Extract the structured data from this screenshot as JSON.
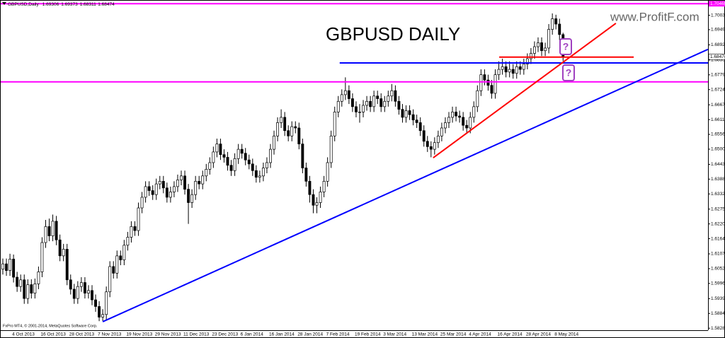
{
  "chart_data": {
    "type": "candlestick",
    "symbol_label": "GBPUSD,Daily",
    "title": "GBPUSD  DAILY",
    "watermark": "www.ProfitF.com",
    "copyright": "FxPro MT4, © 2001-2014, MetaQuotes Software Corp.",
    "question_marks": [
      "?",
      "?"
    ],
    "bull_color": "#ffffff",
    "bear_color": "#000000",
    "ylim": [
      1.5813,
      1.7055
    ],
    "yticks": [
      1.58285,
      {
        "value": 1.5884,
        "label": "1.58840"
      },
      1.59395,
      1.59965,
      {
        "value": 1.6052,
        "label": "1.60520"
      },
      1.61075,
      1.61645,
      {
        "value": 1.622,
        "label": "1.62200"
      },
      1.62755,
      1.63325,
      {
        "value": 1.6388,
        "label": "1.63880"
      },
      1.64435,
      1.65005,
      {
        "value": 1.6556,
        "label": "1.65560"
      },
      1.66115,
      {
        "value": 1.6667,
        "label": "1.66670"
      },
      {
        "value": 1.6724,
        "label": "1.67240"
      },
      1.67795,
      {
        "value": 1.6835,
        "label": "1.68350"
      },
      {
        "value": 1.6892,
        "label": "1.68920"
      },
      {
        "value": 1.6949,
        "label": "1.69490"
      },
      {
        "value": 1.7003,
        "label": "1.70030"
      }
    ],
    "lines": [
      {
        "color": "#ff00ff",
        "x": [
          -1,
          198
        ],
        "y": [
          1.70465,
          1.70465
        ]
      },
      {
        "color": "#ff00ff",
        "x": [
          -1,
          198
        ],
        "y": [
          1.6753,
          1.6753
        ]
      },
      {
        "color": "#0000ff",
        "x": [
          94.4,
          198
        ],
        "y": [
          1.6824,
          1.6824
        ]
      },
      {
        "color": "#ff0000",
        "x": [
          139.1,
          176.8
        ],
        "y": [
          1.6846,
          1.6846
        ]
      },
      {
        "color": "#0000ff",
        "x": [
          28,
          197.6
        ],
        "y": [
          1.5853,
          1.6875
        ]
      },
      {
        "color": "#ff0000",
        "x": [
          120.6,
          171.8
        ],
        "y": [
          1.6468,
          1.6973
        ]
      }
    ],
    "categories": [
      null,
      null,
      null,
      "4 Oct 2013",
      null,
      null,
      null,
      null,
      null,
      null,
      null,
      "16 Oct 2013",
      null,
      null,
      null,
      null,
      null,
      null,
      null,
      "28 Oct 2013",
      null,
      null,
      null,
      null,
      null,
      null,
      null,
      "7 Nov 2013",
      null,
      null,
      null,
      null,
      null,
      null,
      null,
      "19 Nov 2013",
      null,
      null,
      null,
      null,
      null,
      null,
      null,
      "29 Nov 2013",
      null,
      null,
      null,
      null,
      null,
      null,
      null,
      "11 Dec 2013",
      null,
      null,
      null,
      null,
      null,
      null,
      null,
      "23 Dec 2013",
      null,
      null,
      null,
      null,
      null,
      null,
      null,
      "6 Jan 2014",
      null,
      null,
      null,
      null,
      null,
      null,
      null,
      "16 Jan 2014",
      null,
      null,
      null,
      null,
      null,
      null,
      null,
      "28 Jan 2014",
      null,
      null,
      null,
      null,
      null,
      null,
      null,
      "7 Feb 2014",
      null,
      null,
      null,
      null,
      null,
      null,
      null,
      "19 Feb 2014",
      null,
      null,
      null,
      null,
      null,
      null,
      null,
      "3 Mar 2014",
      null,
      null,
      null,
      null,
      null,
      null,
      null,
      "13 Mar 2014",
      null,
      null,
      null,
      null,
      null,
      null,
      null,
      "25 Mar 2014",
      null,
      null,
      null,
      null,
      null,
      null,
      null,
      "4 Apr 2014",
      null,
      null,
      null,
      null,
      null,
      null,
      null,
      "16 Apr 2014",
      null,
      null,
      null,
      null,
      null,
      null,
      null,
      "28 Apr 2014",
      null,
      null,
      null,
      null,
      null,
      null,
      null,
      "8 May 2014",
      null,
      null
    ],
    "ohlc": [
      [
        1.605,
        1.609,
        1.603,
        1.607
      ],
      [
        1.607,
        1.609,
        1.6025,
        1.6045
      ],
      [
        1.6045,
        1.6108,
        1.6025,
        1.6088
      ],
      [
        1.6088,
        1.6105,
        1.6,
        1.602
      ],
      [
        1.602,
        1.604,
        1.5965,
        1.5985
      ],
      [
        1.5985,
        1.603,
        1.5965,
        1.601
      ],
      [
        1.601,
        1.603,
        1.592,
        1.594
      ],
      [
        1.594,
        1.6012,
        1.592,
        1.5992
      ],
      [
        1.5992,
        1.6012,
        1.594,
        1.596
      ],
      [
        1.596,
        1.6015,
        1.594,
        1.5995
      ],
      [
        1.5995,
        1.606,
        1.5975,
        1.604
      ],
      [
        1.604,
        1.617,
        1.602,
        1.615
      ],
      [
        1.615,
        1.6235,
        1.613,
        1.621
      ],
      [
        1.621,
        1.624,
        1.6155,
        1.6175
      ],
      [
        1.6175,
        1.6255,
        1.6155,
        1.623
      ],
      [
        1.623,
        1.625,
        1.614,
        1.616
      ],
      [
        1.616,
        1.618,
        1.608,
        1.61
      ],
      [
        1.61,
        1.6145,
        1.608,
        1.6125
      ],
      [
        1.6125,
        1.6145,
        1.599,
        1.601
      ],
      [
        1.601,
        1.603,
        1.5955,
        1.5975
      ],
      [
        1.5975,
        1.5995,
        1.592,
        1.594
      ],
      [
        1.594,
        1.6005,
        1.592,
        1.5985
      ],
      [
        1.5985,
        1.602,
        1.5965,
        1.6
      ],
      [
        1.6,
        1.602,
        1.594,
        1.596
      ],
      [
        1.596,
        1.599,
        1.594,
        1.597
      ],
      [
        1.597,
        1.599,
        1.5915,
        1.5935
      ],
      [
        1.5935,
        1.5955,
        1.589,
        1.591
      ],
      [
        1.591,
        1.593,
        1.5855,
        1.587
      ],
      [
        1.587,
        1.59,
        1.5855,
        1.588
      ],
      [
        1.588,
        1.5985,
        1.586,
        1.5965
      ],
      [
        1.5965,
        1.608,
        1.5945,
        1.606
      ],
      [
        1.606,
        1.608,
        1.6015,
        1.6035
      ],
      [
        1.6035,
        1.612,
        1.6015,
        1.61
      ],
      [
        1.61,
        1.612,
        1.6065,
        1.6085
      ],
      [
        1.6085,
        1.616,
        1.6065,
        1.614
      ],
      [
        1.614,
        1.619,
        1.612,
        1.617
      ],
      [
        1.617,
        1.623,
        1.615,
        1.621
      ],
      [
        1.621,
        1.623,
        1.6175,
        1.6195
      ],
      [
        1.6195,
        1.63,
        1.6175,
        1.628
      ],
      [
        1.628,
        1.634,
        1.626,
        1.632
      ],
      [
        1.632,
        1.638,
        1.63,
        1.636
      ],
      [
        1.636,
        1.638,
        1.6325,
        1.6345
      ],
      [
        1.6345,
        1.6365,
        1.631,
        1.633
      ],
      [
        1.633,
        1.639,
        1.631,
        1.637
      ],
      [
        1.637,
        1.64,
        1.635,
        1.638
      ],
      [
        1.638,
        1.64,
        1.6335,
        1.6355
      ],
      [
        1.6355,
        1.6375,
        1.63,
        1.632
      ],
      [
        1.632,
        1.636,
        1.63,
        1.634
      ],
      [
        1.634,
        1.638,
        1.632,
        1.636
      ],
      [
        1.636,
        1.6405,
        1.634,
        1.6385
      ],
      [
        1.6385,
        1.642,
        1.6365,
        1.64
      ],
      [
        1.64,
        1.642,
        1.633,
        1.635
      ],
      [
        1.635,
        1.637,
        1.622,
        1.63
      ],
      [
        1.63,
        1.635,
        1.628,
        1.633
      ],
      [
        1.633,
        1.64,
        1.631,
        1.638
      ],
      [
        1.638,
        1.64,
        1.635,
        1.637
      ],
      [
        1.637,
        1.642,
        1.635,
        1.64
      ],
      [
        1.64,
        1.6445,
        1.638,
        1.6425
      ],
      [
        1.6425,
        1.647,
        1.6405,
        1.645
      ],
      [
        1.645,
        1.651,
        1.643,
        1.649
      ],
      [
        1.649,
        1.654,
        1.647,
        1.652
      ],
      [
        1.652,
        1.654,
        1.646,
        1.648
      ],
      [
        1.648,
        1.65,
        1.645,
        1.647
      ],
      [
        1.647,
        1.649,
        1.642,
        1.644
      ],
      [
        1.644,
        1.646,
        1.64,
        1.642
      ],
      [
        1.642,
        1.6485,
        1.64,
        1.6465
      ],
      [
        1.6465,
        1.652,
        1.6445,
        1.65
      ],
      [
        1.65,
        1.652,
        1.6465,
        1.6485
      ],
      [
        1.6485,
        1.6505,
        1.644,
        1.646
      ],
      [
        1.646,
        1.648,
        1.6425,
        1.6445
      ],
      [
        1.6445,
        1.6465,
        1.64,
        1.642
      ],
      [
        1.642,
        1.644,
        1.6375,
        1.6395
      ],
      [
        1.6395,
        1.642,
        1.6375,
        1.64
      ],
      [
        1.64,
        1.645,
        1.638,
        1.643
      ],
      [
        1.643,
        1.647,
        1.641,
        1.645
      ],
      [
        1.645,
        1.652,
        1.643,
        1.65
      ],
      [
        1.65,
        1.657,
        1.648,
        1.655
      ],
      [
        1.655,
        1.662,
        1.653,
        1.66
      ],
      [
        1.66,
        1.665,
        1.658,
        1.662
      ],
      [
        1.662,
        1.664,
        1.655,
        1.657
      ],
      [
        1.657,
        1.659,
        1.653,
        1.655
      ],
      [
        1.655,
        1.6605,
        1.653,
        1.6585
      ],
      [
        1.6585,
        1.6605,
        1.656,
        1.658
      ],
      [
        1.658,
        1.66,
        1.65,
        1.652
      ],
      [
        1.652,
        1.654,
        1.641,
        1.643
      ],
      [
        1.643,
        1.645,
        1.636,
        1.638
      ],
      [
        1.638,
        1.64,
        1.63,
        1.633
      ],
      [
        1.633,
        1.635,
        1.626,
        1.629
      ],
      [
        1.629,
        1.632,
        1.626,
        1.63
      ],
      [
        1.63,
        1.636,
        1.628,
        1.634
      ],
      [
        1.634,
        1.64,
        1.632,
        1.638
      ],
      [
        1.638,
        1.647,
        1.636,
        1.645
      ],
      [
        1.645,
        1.657,
        1.643,
        1.655
      ],
      [
        1.655,
        1.666,
        1.653,
        1.664
      ],
      [
        1.664,
        1.67,
        1.662,
        1.668
      ],
      [
        1.668,
        1.6725,
        1.666,
        1.6705
      ],
      [
        1.6705,
        1.677,
        1.6685,
        1.672
      ],
      [
        1.672,
        1.674,
        1.667,
        1.669
      ],
      [
        1.669,
        1.671,
        1.664,
        1.666
      ],
      [
        1.666,
        1.668,
        1.662,
        1.664
      ],
      [
        1.664,
        1.667,
        1.66,
        1.664
      ],
      [
        1.664,
        1.6685,
        1.662,
        1.6665
      ],
      [
        1.6665,
        1.67,
        1.6645,
        1.668
      ],
      [
        1.668,
        1.67,
        1.664,
        1.666
      ],
      [
        1.666,
        1.672,
        1.664,
        1.67
      ],
      [
        1.67,
        1.672,
        1.667,
        1.669
      ],
      [
        1.669,
        1.671,
        1.664,
        1.666
      ],
      [
        1.666,
        1.67,
        1.664,
        1.668
      ],
      [
        1.668,
        1.672,
        1.666,
        1.67
      ],
      [
        1.67,
        1.6745,
        1.668,
        1.672
      ],
      [
        1.672,
        1.674,
        1.666,
        1.668
      ],
      [
        1.668,
        1.67,
        1.663,
        1.665
      ],
      [
        1.665,
        1.667,
        1.66,
        1.662
      ],
      [
        1.662,
        1.6665,
        1.66,
        1.6645
      ],
      [
        1.6645,
        1.6665,
        1.661,
        1.663
      ],
      [
        1.663,
        1.665,
        1.659,
        1.661
      ],
      [
        1.661,
        1.663,
        1.658,
        1.66
      ],
      [
        1.66,
        1.662,
        1.655,
        1.657
      ],
      [
        1.657,
        1.659,
        1.651,
        1.653
      ],
      [
        1.653,
        1.655,
        1.649,
        1.651
      ],
      [
        1.651,
        1.653,
        1.647,
        1.65
      ],
      [
        1.65,
        1.6545,
        1.648,
        1.6525
      ],
      [
        1.6525,
        1.657,
        1.6505,
        1.655
      ],
      [
        1.655,
        1.66,
        1.653,
        1.658
      ],
      [
        1.658,
        1.662,
        1.656,
        1.66
      ],
      [
        1.66,
        1.664,
        1.658,
        1.662
      ],
      [
        1.662,
        1.666,
        1.66,
        1.664
      ],
      [
        1.664,
        1.666,
        1.6605,
        1.6625
      ],
      [
        1.6625,
        1.6645,
        1.66,
        1.662
      ],
      [
        1.662,
        1.664,
        1.657,
        1.659
      ],
      [
        1.659,
        1.661,
        1.656,
        1.658
      ],
      [
        1.658,
        1.664,
        1.656,
        1.662
      ],
      [
        1.662,
        1.668,
        1.66,
        1.666
      ],
      [
        1.666,
        1.674,
        1.664,
        1.672
      ],
      [
        1.672,
        1.68,
        1.67,
        1.678
      ],
      [
        1.678,
        1.68,
        1.674,
        1.676
      ],
      [
        1.676,
        1.678,
        1.672,
        1.674
      ],
      [
        1.674,
        1.676,
        1.669,
        1.671
      ],
      [
        1.671,
        1.68,
        1.669,
        1.678
      ],
      [
        1.678,
        1.683,
        1.676,
        1.68
      ],
      [
        1.68,
        1.684,
        1.678,
        1.681
      ],
      [
        1.681,
        1.683,
        1.677,
        1.679
      ],
      [
        1.679,
        1.683,
        1.677,
        1.68
      ],
      [
        1.68,
        1.682,
        1.6765,
        1.6785
      ],
      [
        1.6785,
        1.683,
        1.6765,
        1.681
      ],
      [
        1.681,
        1.683,
        1.678,
        1.68
      ],
      [
        1.68,
        1.684,
        1.678,
        1.682
      ],
      [
        1.682,
        1.686,
        1.68,
        1.684
      ],
      [
        1.684,
        1.688,
        1.682,
        1.686
      ],
      [
        1.686,
        1.6905,
        1.684,
        1.6885
      ],
      [
        1.6885,
        1.692,
        1.6865,
        1.69
      ],
      [
        1.69,
        1.692,
        1.685,
        1.687
      ],
      [
        1.687,
        1.69,
        1.685,
        1.688
      ],
      [
        1.688,
        1.697,
        1.686,
        1.695
      ],
      [
        1.695,
        1.701,
        1.693,
        1.699
      ],
      [
        1.699,
        1.7005,
        1.695,
        1.697
      ],
      [
        1.697,
        1.699,
        1.691,
        1.69306
      ],
      [
        1.69306,
        1.69373,
        1.68311,
        1.68474
      ]
    ]
  }
}
